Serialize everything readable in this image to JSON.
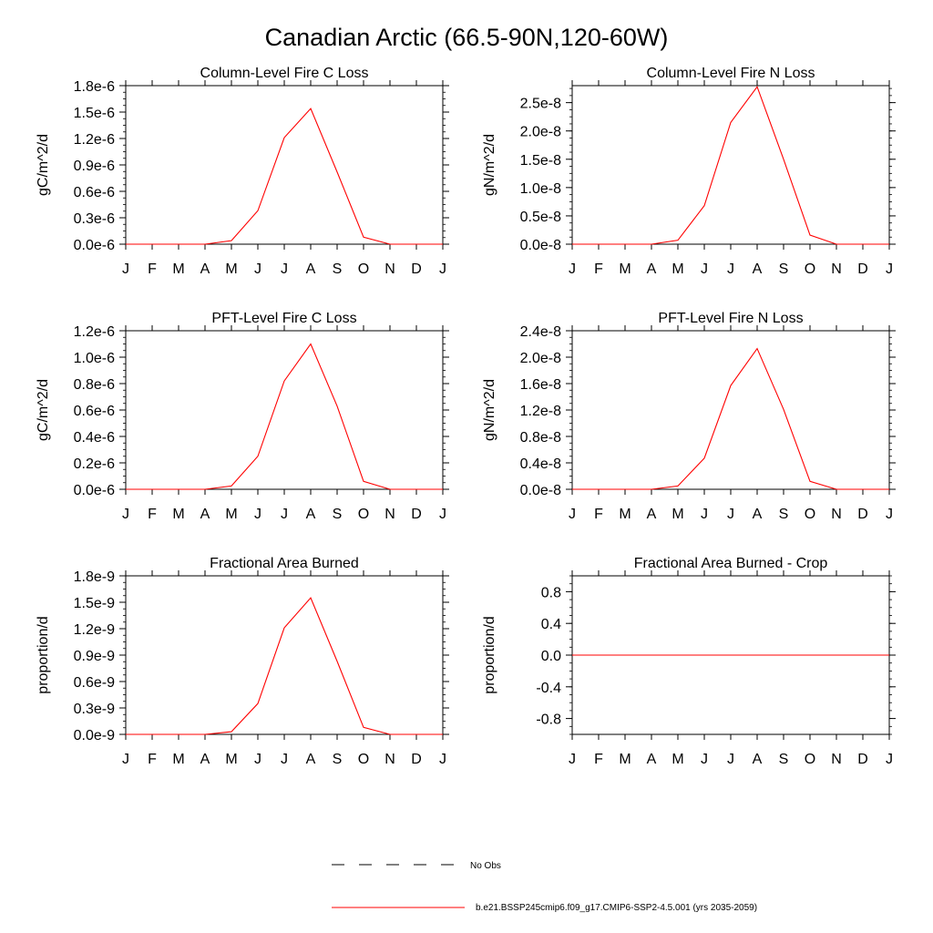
{
  "figure_title": "Canadian Arctic (66.5-90N,120-60W)",
  "legend": {
    "obs_label": "No Obs",
    "model_label": "b.e21.BSSP245cmip6.f09_g17.CMIP6-SSP2-4.5.001 (yrs 2035-2059)",
    "model_color": "#ff0000",
    "obs_color": "#000000"
  },
  "chart_data": [
    {
      "type": "line",
      "title": "Column-Level Fire C Loss",
      "ylabel": "gC/m^2/d",
      "categories": [
        "J",
        "F",
        "M",
        "A",
        "M",
        "J",
        "J",
        "A",
        "S",
        "O",
        "N",
        "D",
        "J"
      ],
      "ylim": [
        0,
        1.8e-06
      ],
      "yticks": [
        0,
        3e-07,
        6e-07,
        9e-07,
        1.2e-06,
        1.5e-06,
        1.8e-06
      ],
      "yticklabels": [
        "0.0e-6",
        "0.3e-6",
        "0.6e-6",
        "0.9e-6",
        "1.2e-6",
        "1.5e-6",
        "1.8e-6"
      ],
      "series": [
        {
          "name": "b.e21.BSSP245cmip6.f09_g17.CMIP6-SSP2-4.5.001 (yrs 2035-2059)",
          "color": "#ff0000",
          "values": [
            0,
            0,
            0,
            0,
            4e-08,
            3.8e-07,
            1.21e-06,
            1.54e-06,
            8.2e-07,
            8e-08,
            0,
            0,
            0
          ]
        }
      ]
    },
    {
      "type": "line",
      "title": "Column-Level Fire N Loss",
      "ylabel": "gN/m^2/d",
      "categories": [
        "J",
        "F",
        "M",
        "A",
        "M",
        "J",
        "J",
        "A",
        "S",
        "O",
        "N",
        "D",
        "J"
      ],
      "ylim": [
        0,
        2.8e-08
      ],
      "yticks": [
        0,
        5e-09,
        1e-08,
        1.5e-08,
        2e-08,
        2.5e-08
      ],
      "yticklabels": [
        "0.0e-8",
        "0.5e-8",
        "1.0e-8",
        "1.5e-8",
        "2.0e-8",
        "2.5e-8"
      ],
      "series": [
        {
          "name": "b.e21.BSSP245cmip6.f09_g17.CMIP6-SSP2-4.5.001 (yrs 2035-2059)",
          "color": "#ff0000",
          "values": [
            0,
            0,
            0,
            0,
            7e-10,
            6.8e-09,
            2.15e-08,
            2.78e-08,
            1.5e-08,
            1.6e-09,
            0,
            0,
            0
          ]
        }
      ]
    },
    {
      "type": "line",
      "title": "PFT-Level Fire C Loss",
      "ylabel": "gC/m^2/d",
      "categories": [
        "J",
        "F",
        "M",
        "A",
        "M",
        "J",
        "J",
        "A",
        "S",
        "O",
        "N",
        "D",
        "J"
      ],
      "ylim": [
        0,
        1.2e-06
      ],
      "yticks": [
        0,
        2e-07,
        4e-07,
        6e-07,
        8e-07,
        1e-06,
        1.2e-06
      ],
      "yticklabels": [
        "0.0e-6",
        "0.2e-6",
        "0.4e-6",
        "0.6e-6",
        "0.8e-6",
        "1.0e-6",
        "1.2e-6"
      ],
      "series": [
        {
          "name": "b.e21.BSSP245cmip6.f09_g17.CMIP6-SSP2-4.5.001 (yrs 2035-2059)",
          "color": "#ff0000",
          "values": [
            0,
            0,
            0,
            0,
            2.5e-08,
            2.5e-07,
            8.2e-07,
            1.1e-06,
            6.3e-07,
            6e-08,
            0,
            0,
            0
          ]
        }
      ]
    },
    {
      "type": "line",
      "title": "PFT-Level Fire N Loss",
      "ylabel": "gN/m^2/d",
      "categories": [
        "J",
        "F",
        "M",
        "A",
        "M",
        "J",
        "J",
        "A",
        "S",
        "O",
        "N",
        "D",
        "J"
      ],
      "ylim": [
        0,
        2.4e-08
      ],
      "yticks": [
        0,
        4e-09,
        8e-09,
        1.2e-08,
        1.6e-08,
        2e-08,
        2.4e-08
      ],
      "yticklabels": [
        "0.0e-8",
        "0.4e-8",
        "0.8e-8",
        "1.2e-8",
        "1.6e-8",
        "2.0e-8",
        "2.4e-8"
      ],
      "series": [
        {
          "name": "b.e21.BSSP245cmip6.f09_g17.CMIP6-SSP2-4.5.001 (yrs 2035-2059)",
          "color": "#ff0000",
          "values": [
            0,
            0,
            0,
            0,
            5e-10,
            4.7e-09,
            1.57e-08,
            2.13e-08,
            1.21e-08,
            1.2e-09,
            0,
            0,
            0
          ]
        }
      ]
    },
    {
      "type": "line",
      "title": "Fractional Area Burned",
      "ylabel": "proportion/d",
      "categories": [
        "J",
        "F",
        "M",
        "A",
        "M",
        "J",
        "J",
        "A",
        "S",
        "O",
        "N",
        "D",
        "J"
      ],
      "ylim": [
        0,
        1.8e-09
      ],
      "yticks": [
        0,
        3e-10,
        6e-10,
        9e-10,
        1.2e-09,
        1.5e-09,
        1.8e-09
      ],
      "yticklabels": [
        "0.0e-9",
        "0.3e-9",
        "0.6e-9",
        "0.9e-9",
        "1.2e-9",
        "1.5e-9",
        "1.8e-9"
      ],
      "series": [
        {
          "name": "b.e21.BSSP245cmip6.f09_g17.CMIP6-SSP2-4.5.001 (yrs 2035-2059)",
          "color": "#ff0000",
          "values": [
            0,
            0,
            0,
            0,
            3e-11,
            3.5e-10,
            1.21e-09,
            1.55e-09,
            8.3e-10,
            8e-11,
            0,
            0,
            0
          ]
        }
      ]
    },
    {
      "type": "line",
      "title": "Fractional Area Burned - Crop",
      "ylabel": "proportion/d",
      "categories": [
        "J",
        "F",
        "M",
        "A",
        "M",
        "J",
        "J",
        "A",
        "S",
        "O",
        "N",
        "D",
        "J"
      ],
      "ylim": [
        -1.0,
        1.0
      ],
      "yticks": [
        -0.8,
        -0.4,
        0.0,
        0.4,
        0.8
      ],
      "yticklabels": [
        "-0.8",
        "-0.4",
        "0.0",
        "0.4",
        "0.8"
      ],
      "series": [
        {
          "name": "b.e21.BSSP245cmip6.f09_g17.CMIP6-SSP2-4.5.001 (yrs 2035-2059)",
          "color": "#ff0000",
          "values": [
            0,
            0,
            0,
            0,
            0,
            0,
            0,
            0,
            0,
            0,
            0,
            0,
            0
          ]
        }
      ]
    }
  ]
}
